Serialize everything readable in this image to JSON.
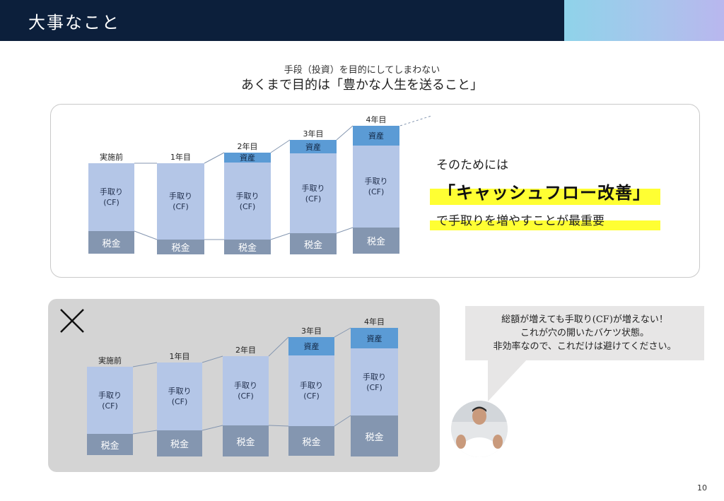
{
  "header": {
    "title": "大事なこと"
  },
  "subtitle": {
    "small": "手段（投資）を目的にしてしまわない",
    "main": "あくまで目的は「豊かな人生を送ること」"
  },
  "good_chart": {
    "bars": [
      {
        "label": "実施前",
        "cf_lines": [
          "手取り",
          "(CF)"
        ],
        "tax": "税金"
      },
      {
        "label": "1年目",
        "cf_lines": [
          "手取り",
          "(CF)"
        ],
        "tax": "税金"
      },
      {
        "label": "2年目",
        "cf_lines": [
          "手取り",
          "(CF)"
        ],
        "tax": "税金",
        "asset": "資産"
      },
      {
        "label": "3年目",
        "cf_lines": [
          "手取り",
          "(CF)"
        ],
        "tax": "税金",
        "asset": "資産"
      },
      {
        "label": "4年目",
        "cf_lines": [
          "手取り",
          "(CF)"
        ],
        "tax": "税金",
        "asset": "資産"
      }
    ]
  },
  "message": {
    "line1": "そのためには",
    "line2": "「キャッシュフロー改善」",
    "line3": "で手取りを増やすことが最重要"
  },
  "bad_chart": {
    "bars": [
      {
        "label": "実施前",
        "cf_lines": [
          "手取り",
          "(CF)"
        ],
        "tax": "税金"
      },
      {
        "label": "1年目",
        "cf_lines": [
          "手取り",
          "(CF)"
        ],
        "tax": "税金"
      },
      {
        "label": "2年目",
        "cf_lines": [
          "手取り",
          "(CF)"
        ],
        "tax": "税金"
      },
      {
        "label": "3年目",
        "cf_lines": [
          "手取り",
          "(CF)"
        ],
        "tax": "税金",
        "asset": "資産"
      },
      {
        "label": "4年目",
        "cf_lines": [
          "手取り",
          "(CF)"
        ],
        "tax": "税金",
        "asset": "資産"
      }
    ]
  },
  "callout": {
    "lines": [
      "総額が増えても手取り(CF)が増えない！",
      "これが穴の開いたバケツ状態。",
      "非効率なので、これだけは避けてください。"
    ]
  },
  "page_number": "10",
  "colors": {
    "header": "#0c1f3b",
    "cf": "#b4c6e7",
    "tax": "#8496b0",
    "asset": "#5b9bd5",
    "highlight": "#ffff33"
  }
}
